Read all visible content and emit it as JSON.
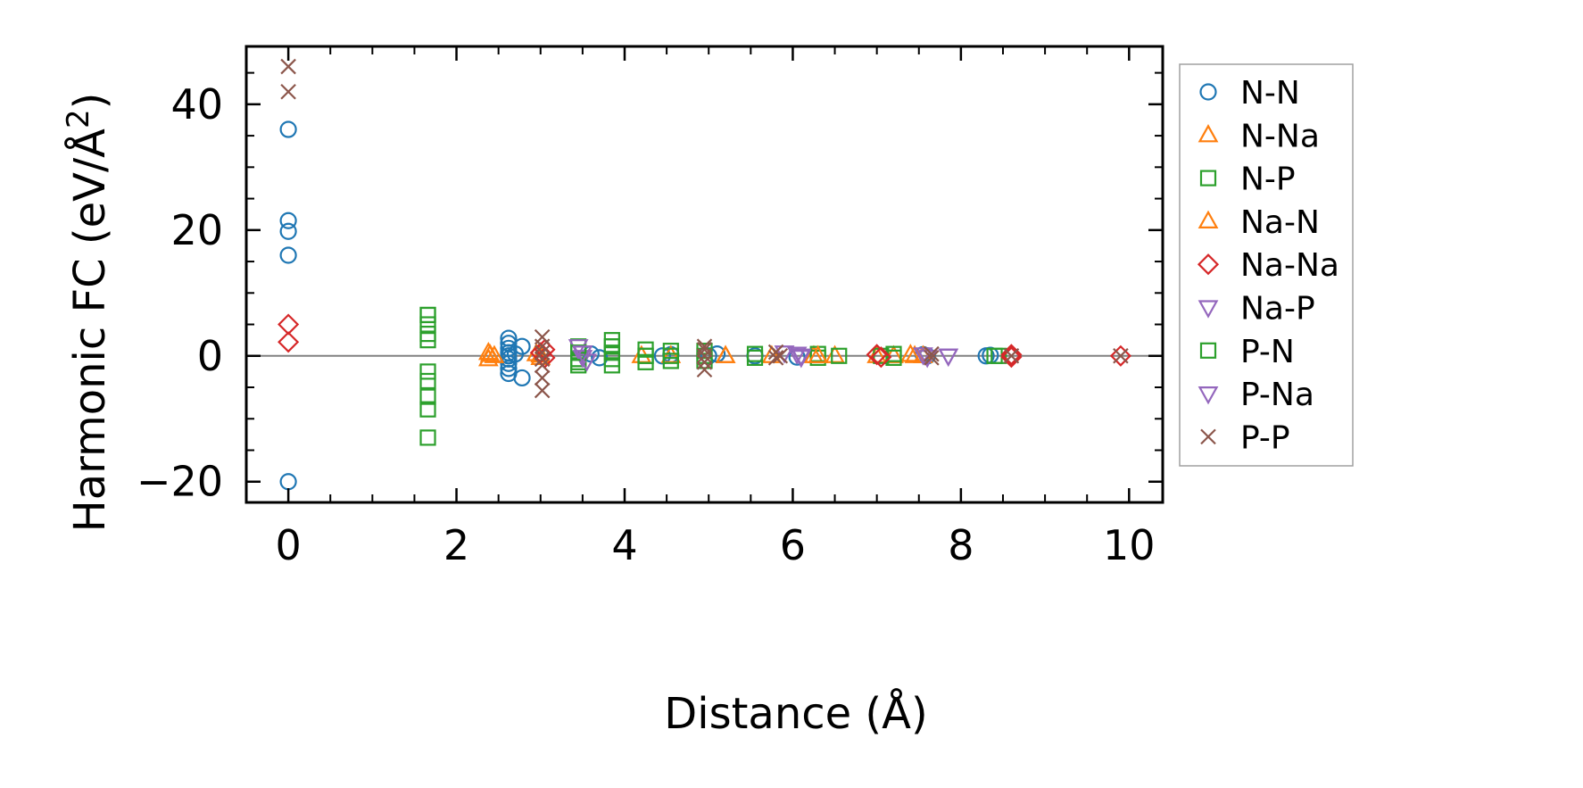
{
  "chart_data": {
    "type": "scatter",
    "title": "",
    "xlabel": "Distance (Å)",
    "ylabel_main": "Harmonic FC (eV/Å",
    "ylabel_sup": "2",
    "ylabel_end": ")",
    "xlim": [
      -0.5,
      10.4
    ],
    "ylim": [
      -23.3,
      49.2
    ],
    "xticks": [
      0,
      2,
      4,
      6,
      8,
      10
    ],
    "xtick_labels": [
      "0",
      "2",
      "4",
      "6",
      "8",
      "10"
    ],
    "xminor_ticks": [
      0.5,
      1,
      1.5,
      2.5,
      3,
      3.5,
      4.5,
      5,
      5.5,
      6.5,
      7,
      7.5,
      8.5,
      9,
      9.5
    ],
    "yticks": [
      -20,
      0,
      20,
      40
    ],
    "ytick_labels": [
      "−20",
      "0",
      "20",
      "40"
    ],
    "yminor_ticks": [
      -15,
      -10,
      -5,
      5,
      10,
      15,
      25,
      30,
      35,
      45
    ],
    "zero_line": true,
    "zero_line_color": "#808080",
    "grid": false,
    "legend_position": "outside-right",
    "series": [
      {
        "name": "N-N",
        "marker": "circle",
        "color": "#1f77b4",
        "x": [
          0,
          0,
          0,
          0,
          0,
          2.62,
          2.62,
          2.62,
          2.62,
          2.62,
          2.62,
          2.62,
          2.62,
          2.62,
          2.78,
          2.78,
          2.7,
          3.6,
          3.7,
          4.45,
          4.55,
          5.0,
          5.1,
          5.55,
          6.05,
          7.55,
          7.6,
          8.3,
          8.35
        ],
        "y": [
          36,
          21.5,
          19.8,
          16,
          -20,
          2.8,
          2,
          1.2,
          0.5,
          0,
          -0.5,
          -1.2,
          -2,
          -2.8,
          1.5,
          -3.5,
          0.3,
          0.3,
          -0.3,
          0,
          0.2,
          0,
          0.3,
          0,
          -0.2,
          0.2,
          0,
          0,
          0.1
        ]
      },
      {
        "name": "N-Na",
        "marker": "triangle-up",
        "color": "#ff7f0e",
        "x": [
          2.38,
          2.38,
          2.45,
          2.95,
          3.0,
          4.2,
          4.55,
          5.2,
          5.75,
          6.25,
          6.5,
          7.0,
          7.2,
          7.4,
          7.55
        ],
        "y": [
          0.5,
          -0.5,
          0,
          0.3,
          -0.3,
          0,
          0,
          0,
          0,
          0,
          0,
          0,
          0,
          0.2,
          0
        ]
      },
      {
        "name": "N-P",
        "marker": "square",
        "color": "#2ca02c",
        "x": [
          1.66,
          1.66,
          1.66,
          1.66,
          1.66,
          1.66,
          1.66,
          1.66,
          1.66,
          3.45,
          3.45,
          3.45,
          3.45,
          3.45,
          3.85,
          3.85,
          3.85,
          3.85,
          3.85,
          4.25,
          4.25,
          4.25,
          4.55,
          4.55,
          4.55,
          4.95,
          4.95,
          4.95,
          5.55,
          5.55,
          6.3,
          6.3,
          6.55,
          7.05,
          7.2,
          7.2,
          8.4,
          8.45
        ],
        "y": [
          6.5,
          5,
          3.5,
          2.5,
          -2.5,
          -4,
          -6.5,
          -8.5,
          -13,
          1.5,
          0.5,
          -0.5,
          -1,
          -1.5,
          2.5,
          1.5,
          0.5,
          -0.5,
          -1.5,
          1,
          0,
          -1,
          0.8,
          0,
          -0.8,
          0.8,
          0,
          -0.8,
          0.3,
          -0.3,
          0.3,
          -0.3,
          0,
          0,
          0.3,
          -0.3,
          0,
          0
        ]
      },
      {
        "name": "Na-N",
        "marker": "triangle-up",
        "color": "#ff7f0e",
        "x": [
          2.4,
          3.0,
          5.2,
          6.3,
          7.45
        ],
        "y": [
          0.2,
          0.1,
          0,
          0,
          0
        ]
      },
      {
        "name": "Na-Na",
        "marker": "diamond",
        "color": "#d62728",
        "x": [
          0,
          0,
          3.0,
          3.05,
          3.05,
          7.0,
          7.05,
          8.6,
          8.6,
          9.9
        ],
        "y": [
          5,
          2.2,
          0.5,
          1,
          -0.3,
          0.2,
          -0.2,
          0.2,
          -0.2,
          0
        ]
      },
      {
        "name": "Na-P",
        "marker": "triangle-down",
        "color": "#9467bd",
        "x": [
          3.45,
          3.5,
          3.5,
          3.55,
          5.9,
          6.05,
          6.1,
          7.55,
          7.6,
          7.85
        ],
        "y": [
          1.5,
          0.5,
          -0.2,
          -0.8,
          0.5,
          0.3,
          -0.2,
          0.2,
          -0.2,
          0
        ]
      },
      {
        "name": "P-N",
        "marker": "square",
        "color": "#2ca02c",
        "x": [
          1.66,
          3.45,
          3.85,
          4.25
        ],
        "y": [
          6.5,
          0.5,
          1.5,
          0
        ]
      },
      {
        "name": "P-Na",
        "marker": "triangle-down",
        "color": "#9467bd",
        "x": [
          3.5,
          6.1,
          7.85
        ],
        "y": [
          0.5,
          0,
          0
        ]
      },
      {
        "name": "P-P",
        "marker": "x",
        "color": "#8c564b",
        "x": [
          0,
          0,
          3.02,
          3.02,
          3.02,
          3.02,
          3.02,
          3.02,
          3.02,
          4.95,
          4.95,
          4.95,
          4.95,
          4.95,
          5.8,
          5.8,
          5.85,
          7.65,
          7.65,
          8.6,
          9.9
        ],
        "y": [
          46,
          42,
          3,
          1.5,
          0.5,
          -0.5,
          -1.5,
          -3.5,
          -5.5,
          1.5,
          1,
          0,
          -1,
          -2.2,
          0.6,
          -0.3,
          0,
          0.3,
          -0.3,
          0,
          0
        ]
      }
    ]
  }
}
